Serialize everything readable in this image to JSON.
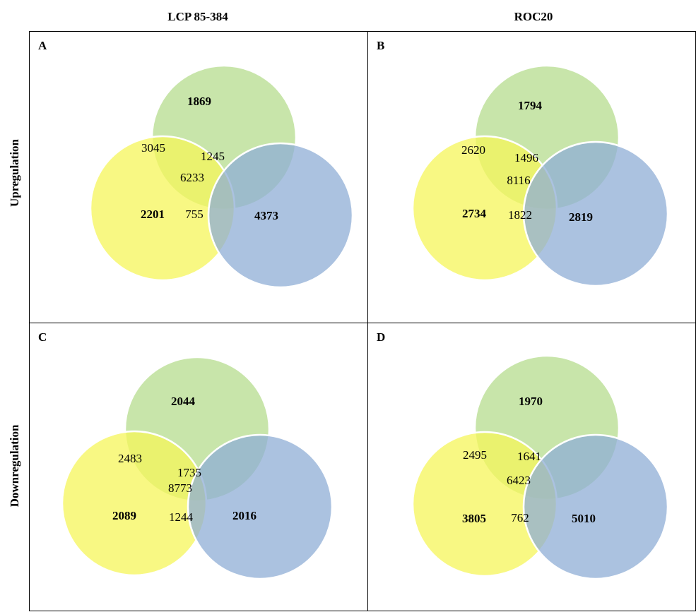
{
  "columns": [
    "LCP 85-384",
    "ROC20"
  ],
  "rows": [
    "Upregulation",
    "Downregulation"
  ],
  "colors": {
    "green": "#b5dc8e",
    "yellow": "#f6f55a",
    "blue": "#8faed6",
    "border": "#ffffff"
  },
  "panels": [
    {
      "letter": "A",
      "top": "1869",
      "left": "2201",
      "right": "4373",
      "top_left": "3045",
      "top_right": "1245",
      "center": "6233",
      "bottom": "755"
    },
    {
      "letter": "B",
      "top": "1794",
      "left": "2734",
      "right": "2819",
      "top_left": "2620",
      "top_right": "1496",
      "center": "8116",
      "bottom": "1822"
    },
    {
      "letter": "C",
      "top": "2044",
      "left": "2089",
      "right": "2016",
      "top_left": "2483",
      "top_right": "1735",
      "center": "8773",
      "bottom": "1244"
    },
    {
      "letter": "D",
      "top": "1970",
      "left": "3805",
      "right": "5010",
      "top_left": "2495",
      "top_right": "1641",
      "center": "6423",
      "bottom": "762"
    }
  ]
}
